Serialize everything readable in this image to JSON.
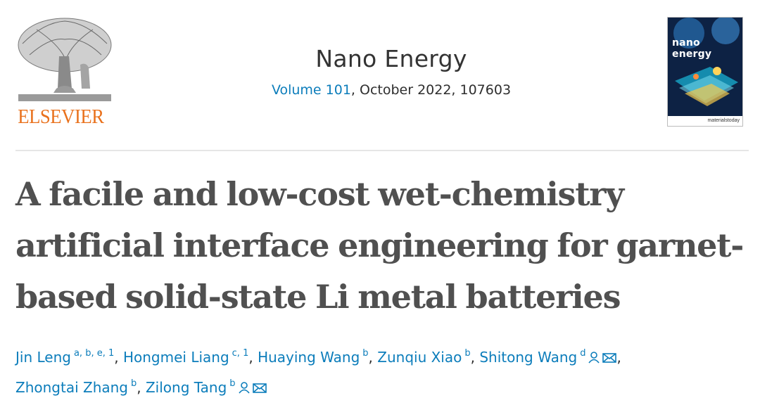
{
  "publisher": {
    "name": "ELSEVIER"
  },
  "journal": {
    "title": "Nano Energy",
    "volume_link": "Volume 101",
    "issue_details": ", October 2022, 107603"
  },
  "cover": {
    "title": "nano energy",
    "footer": "materialstoday"
  },
  "article": {
    "title": "A facile and low-cost wet-chemistry artificial interface engineering for garnet-based solid-state Li metal batteries"
  },
  "authors": [
    {
      "name": "Jin Leng",
      "affiliations": "a, b, e, 1"
    },
    {
      "name": "Hongmei Liang",
      "affiliations": "c, 1"
    },
    {
      "name": "Huaying Wang",
      "affiliations": "b"
    },
    {
      "name": "Zunqiu Xiao",
      "affiliations": "b"
    },
    {
      "name": "Shitong Wang",
      "affiliations": "d"
    },
    {
      "name": "Zhongtai Zhang",
      "affiliations": "b"
    },
    {
      "name": "Zilong Tang",
      "affiliations": "b"
    }
  ],
  "colors": {
    "link": "#0c7dbb",
    "publisher": "#e9711c"
  }
}
